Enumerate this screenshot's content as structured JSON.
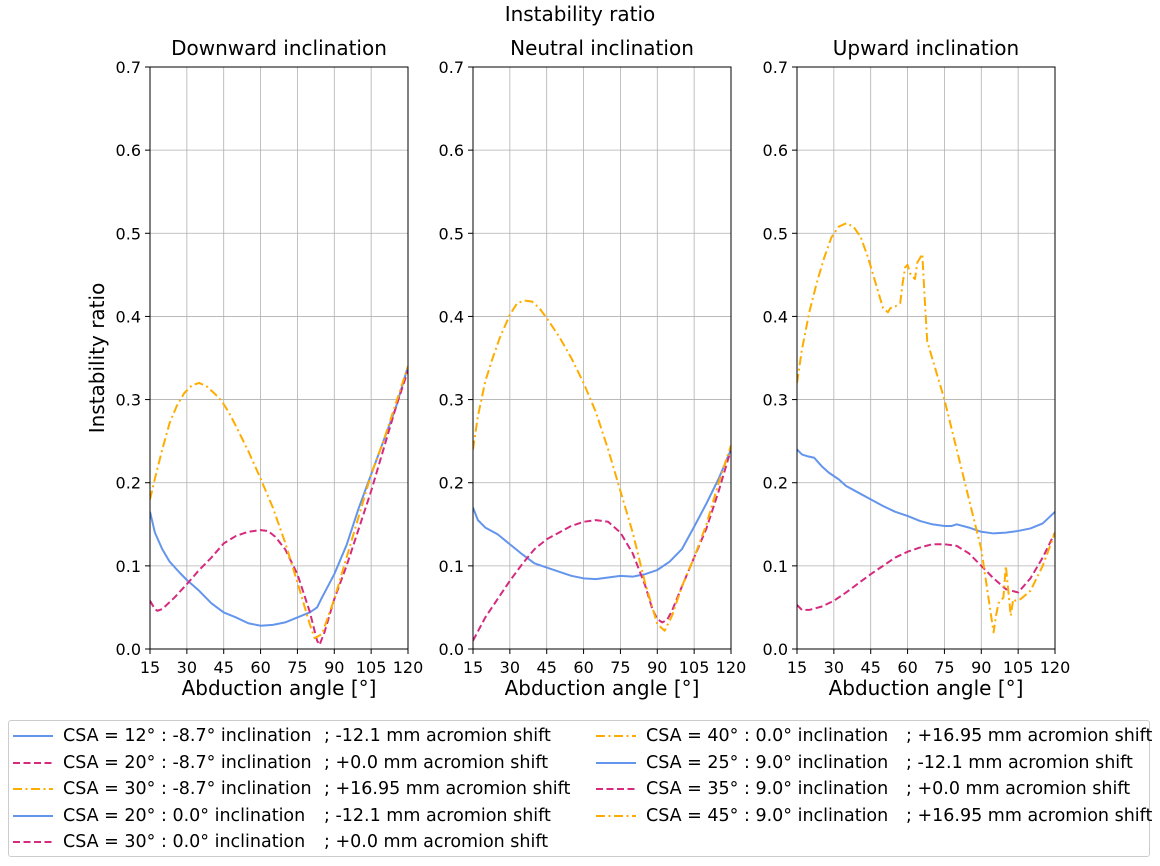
{
  "suptitle": "Instability ratio",
  "colors": {
    "blue": "#6495ED",
    "magenta": "#D62A7E",
    "orange": "#FFAC00"
  },
  "legend": [
    {
      "style": "solid",
      "color": "blue",
      "label": "CSA = 12° : -8.7° inclination",
      "shift": "; -12.1 mm acromion shift"
    },
    {
      "style": "dashed",
      "color": "magenta",
      "label": "CSA = 20° : -8.7° inclination",
      "shift": "; +0.0 mm acromion shift"
    },
    {
      "style": "dashdot",
      "color": "orange",
      "label": "CSA = 30° : -8.7° inclination",
      "shift": "; +16.95 mm acromion shift"
    },
    {
      "style": "solid",
      "color": "blue",
      "label": "CSA = 20° : 0.0° inclination",
      "shift": "; -12.1 mm acromion shift"
    },
    {
      "style": "dashed",
      "color": "magenta",
      "label": "CSA = 30° : 0.0° inclination",
      "shift": "; +0.0 mm acromion shift"
    },
    {
      "style": "dashdot",
      "color": "orange",
      "label": "CSA = 40° : 0.0° inclination",
      "shift": "; +16.95 mm acromion shift"
    },
    {
      "style": "solid",
      "color": "blue",
      "label": "CSA = 25° : 9.0° inclination",
      "shift": "; -12.1 mm acromion shift"
    },
    {
      "style": "dashed",
      "color": "magenta",
      "label": "CSA = 35° : 9.0° inclination",
      "shift": "; +0.0 mm acromion shift"
    },
    {
      "style": "dashdot",
      "color": "orange",
      "label": "CSA = 45° : 9.0° inclination",
      "shift": "; +16.95 mm acromion shift"
    }
  ],
  "chart_data": [
    {
      "type": "line",
      "title": "Downward inclination",
      "xlabel": "Abduction angle [°]",
      "ylabel": "Instability ratio",
      "xlim": [
        15,
        120
      ],
      "ylim": [
        0.0,
        0.7
      ],
      "xticks": [
        "15",
        "30",
        "45",
        "60",
        "75",
        "90",
        "105",
        "120"
      ],
      "yticks": [
        "0.0",
        "0.1",
        "0.2",
        "0.3",
        "0.4",
        "0.5",
        "0.6",
        "0.7"
      ],
      "grid": true,
      "series": [
        {
          "name": "CSA = 12° : -8.7° inclination",
          "color": "blue",
          "style": "solid",
          "x": [
            15,
            17,
            20,
            23,
            27,
            30,
            35,
            40,
            45,
            50,
            55,
            60,
            65,
            70,
            75,
            80,
            83,
            85,
            90,
            95,
            100,
            105,
            110,
            115,
            120
          ],
          "y": [
            0.165,
            0.14,
            0.12,
            0.105,
            0.092,
            0.083,
            0.07,
            0.055,
            0.044,
            0.038,
            0.031,
            0.028,
            0.029,
            0.032,
            0.038,
            0.044,
            0.05,
            0.062,
            0.09,
            0.125,
            0.17,
            0.21,
            0.25,
            0.29,
            0.34
          ]
        },
        {
          "name": "CSA = 20° : -8.7° inclination",
          "color": "magenta",
          "style": "dashed",
          "x": [
            15,
            17,
            18,
            20,
            25,
            30,
            35,
            40,
            45,
            50,
            55,
            60,
            63,
            66,
            70,
            75,
            80,
            83,
            84,
            86,
            90,
            95,
            100,
            105,
            110,
            115,
            120
          ],
          "y": [
            0.058,
            0.048,
            0.046,
            0.048,
            0.062,
            0.078,
            0.095,
            0.11,
            0.127,
            0.136,
            0.141,
            0.143,
            0.142,
            0.135,
            0.12,
            0.09,
            0.045,
            0.01,
            0.005,
            0.02,
            0.06,
            0.1,
            0.145,
            0.19,
            0.24,
            0.29,
            0.335
          ]
        },
        {
          "name": "CSA = 30° : -8.7° inclination",
          "color": "orange",
          "style": "dashdot",
          "x": [
            15,
            17,
            20,
            23,
            26,
            29,
            32,
            35,
            38,
            41,
            44,
            47,
            50,
            55,
            60,
            65,
            70,
            75,
            80,
            82,
            85,
            90,
            95,
            100,
            105,
            110,
            115,
            120
          ],
          "y": [
            0.18,
            0.205,
            0.24,
            0.272,
            0.293,
            0.308,
            0.317,
            0.32,
            0.316,
            0.308,
            0.299,
            0.285,
            0.268,
            0.238,
            0.205,
            0.17,
            0.128,
            0.08,
            0.03,
            0.013,
            0.018,
            0.06,
            0.11,
            0.16,
            0.21,
            0.25,
            0.295,
            0.34
          ]
        }
      ]
    },
    {
      "type": "line",
      "title": "Neutral inclination",
      "xlabel": "Abduction angle [°]",
      "ylabel": "",
      "xlim": [
        15,
        120
      ],
      "ylim": [
        0.0,
        0.7
      ],
      "xticks": [
        "15",
        "30",
        "45",
        "60",
        "75",
        "90",
        "105",
        "120"
      ],
      "yticks": [
        "0.0",
        "0.1",
        "0.2",
        "0.3",
        "0.4",
        "0.5",
        "0.6",
        "0.7"
      ],
      "grid": true,
      "series": [
        {
          "name": "CSA = 20° : 0.0° inclination",
          "color": "blue",
          "style": "solid",
          "x": [
            15,
            17,
            20,
            25,
            30,
            35,
            40,
            45,
            50,
            55,
            60,
            65,
            70,
            75,
            80,
            85,
            90,
            95,
            100,
            105,
            110,
            115,
            120
          ],
          "y": [
            0.17,
            0.155,
            0.146,
            0.138,
            0.126,
            0.114,
            0.103,
            0.098,
            0.093,
            0.088,
            0.085,
            0.084,
            0.086,
            0.088,
            0.087,
            0.09,
            0.095,
            0.105,
            0.12,
            0.147,
            0.175,
            0.205,
            0.24
          ]
        },
        {
          "name": "CSA = 30° : 0.0° inclination",
          "color": "magenta",
          "style": "dashed",
          "x": [
            15,
            20,
            25,
            30,
            35,
            40,
            45,
            50,
            55,
            60,
            65,
            70,
            75,
            80,
            85,
            88,
            90,
            92,
            94,
            96,
            100,
            105,
            110,
            115,
            120
          ],
          "y": [
            0.01,
            0.038,
            0.06,
            0.082,
            0.102,
            0.12,
            0.132,
            0.14,
            0.148,
            0.153,
            0.155,
            0.153,
            0.14,
            0.115,
            0.077,
            0.048,
            0.036,
            0.032,
            0.035,
            0.046,
            0.075,
            0.11,
            0.145,
            0.19,
            0.24
          ]
        },
        {
          "name": "CSA = 40° : 0.0° inclination",
          "color": "orange",
          "style": "dashdot",
          "x": [
            15,
            17,
            20,
            23,
            26,
            30,
            33,
            36,
            39,
            42,
            45,
            50,
            55,
            60,
            65,
            70,
            75,
            80,
            85,
            90,
            93,
            96,
            100,
            105,
            110,
            115,
            120
          ],
          "y": [
            0.24,
            0.28,
            0.322,
            0.35,
            0.375,
            0.402,
            0.416,
            0.419,
            0.418,
            0.41,
            0.398,
            0.376,
            0.35,
            0.32,
            0.285,
            0.24,
            0.19,
            0.14,
            0.08,
            0.03,
            0.022,
            0.04,
            0.075,
            0.11,
            0.15,
            0.2,
            0.245
          ]
        }
      ]
    },
    {
      "type": "line",
      "title": "Upward inclination",
      "xlabel": "Abduction angle [°]",
      "ylabel": "",
      "xlim": [
        15,
        120
      ],
      "ylim": [
        0.0,
        0.7
      ],
      "xticks": [
        "15",
        "30",
        "45",
        "60",
        "75",
        "90",
        "105",
        "120"
      ],
      "yticks": [
        "0.0",
        "0.1",
        "0.2",
        "0.3",
        "0.4",
        "0.5",
        "0.6",
        "0.7"
      ],
      "grid": true,
      "series": [
        {
          "name": "CSA = 25° : 9.0° inclination",
          "color": "blue",
          "style": "solid",
          "x": [
            15,
            17,
            19,
            22,
            25,
            28,
            32,
            35,
            40,
            45,
            50,
            55,
            60,
            65,
            70,
            75,
            78,
            80,
            85,
            90,
            95,
            100,
            105,
            110,
            115,
            120
          ],
          "y": [
            0.24,
            0.234,
            0.232,
            0.23,
            0.22,
            0.212,
            0.204,
            0.196,
            0.188,
            0.18,
            0.172,
            0.165,
            0.16,
            0.154,
            0.15,
            0.148,
            0.148,
            0.15,
            0.146,
            0.141,
            0.139,
            0.14,
            0.142,
            0.145,
            0.151,
            0.165
          ]
        },
        {
          "name": "CSA = 35° : 9.0° inclination",
          "color": "magenta",
          "style": "dashed",
          "x": [
            15,
            17,
            20,
            25,
            30,
            35,
            40,
            45,
            50,
            55,
            60,
            65,
            70,
            75,
            80,
            85,
            90,
            95,
            100,
            105,
            110,
            115,
            120
          ],
          "y": [
            0.053,
            0.047,
            0.047,
            0.051,
            0.058,
            0.068,
            0.079,
            0.09,
            0.1,
            0.11,
            0.117,
            0.122,
            0.126,
            0.126,
            0.124,
            0.115,
            0.1,
            0.085,
            0.072,
            0.068,
            0.085,
            0.11,
            0.14
          ]
        },
        {
          "name": "CSA = 45° : 9.0° inclination",
          "color": "orange",
          "style": "dashdot",
          "x": [
            15,
            17,
            20,
            23,
            26,
            29,
            32,
            35,
            38,
            41,
            44,
            47,
            50,
            52,
            53,
            55,
            57,
            58,
            59,
            60,
            61,
            62,
            63,
            64,
            65,
            66,
            67,
            68,
            70,
            75,
            80,
            85,
            90,
            93,
            95,
            96,
            97,
            99,
            100,
            101,
            102,
            103,
            104,
            106,
            108,
            110,
            115,
            120
          ],
          "y": [
            0.32,
            0.36,
            0.405,
            0.44,
            0.47,
            0.495,
            0.508,
            0.512,
            0.508,
            0.495,
            0.47,
            0.44,
            0.41,
            0.405,
            0.41,
            0.412,
            0.416,
            0.44,
            0.459,
            0.462,
            0.452,
            0.448,
            0.445,
            0.465,
            0.47,
            0.475,
            0.42,
            0.37,
            0.35,
            0.3,
            0.24,
            0.18,
            0.12,
            0.06,
            0.02,
            0.04,
            0.055,
            0.062,
            0.1,
            0.07,
            0.04,
            0.06,
            0.058,
            0.06,
            0.065,
            0.07,
            0.1,
            0.14
          ]
        }
      ]
    }
  ]
}
